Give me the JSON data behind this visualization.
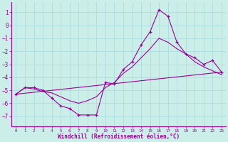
{
  "xlabel": "Windchill (Refroidissement éolien,°C)",
  "bg_color": "#cceee8",
  "grid_color": "#aadddd",
  "line_color": "#990099",
  "xlim": [
    -0.5,
    23.5
  ],
  "ylim": [
    -7.8,
    1.8
  ],
  "yticks": [
    1,
    0,
    -1,
    -2,
    -3,
    -4,
    -5,
    -6,
    -7
  ],
  "xticks": [
    0,
    1,
    2,
    3,
    4,
    5,
    6,
    7,
    8,
    9,
    10,
    11,
    12,
    13,
    14,
    15,
    16,
    17,
    18,
    19,
    20,
    21,
    22,
    23
  ],
  "line1_x": [
    0,
    1,
    2,
    3,
    4,
    5,
    6,
    7,
    8,
    9,
    10,
    11,
    12,
    13,
    14,
    15,
    16,
    17,
    18,
    19,
    20,
    21,
    22,
    23
  ],
  "line1_y": [
    -5.3,
    -4.8,
    -4.8,
    -5.0,
    -5.6,
    -6.2,
    -6.4,
    -6.9,
    -6.9,
    -6.9,
    -4.4,
    -4.5,
    -3.4,
    -2.8,
    -1.5,
    -0.5,
    1.2,
    0.7,
    -1.3,
    -2.2,
    -2.5,
    -3.0,
    -2.7,
    -3.6
  ],
  "line2_x": [
    0,
    1,
    2,
    3,
    4,
    5,
    6,
    7,
    8,
    9,
    10,
    11,
    12,
    13,
    14,
    15,
    16,
    17,
    18,
    19,
    20,
    21,
    22,
    23
  ],
  "line2_y": [
    -5.3,
    -4.8,
    -4.9,
    -5.1,
    -5.2,
    -5.5,
    -5.8,
    -6.0,
    -5.8,
    -5.5,
    -4.8,
    -4.4,
    -3.7,
    -3.2,
    -2.5,
    -1.8,
    -1.0,
    -1.3,
    -1.8,
    -2.2,
    -2.8,
    -3.2,
    -3.5,
    -3.8
  ],
  "line3_x": [
    0,
    23
  ],
  "line3_y": [
    -5.3,
    -3.6
  ]
}
